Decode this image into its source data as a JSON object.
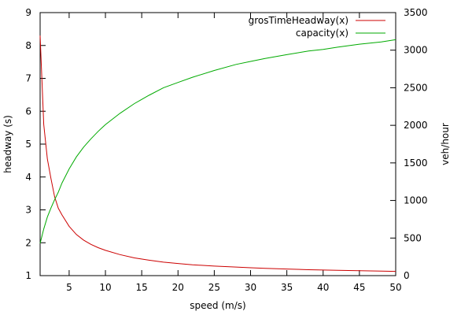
{
  "chart_data": {
    "type": "line",
    "xlabel": "speed (m/s)",
    "ylabel_left": "headway (s)",
    "ylabel_right": "veh/hour",
    "xlim": [
      1,
      50
    ],
    "ylim_left": [
      1,
      9
    ],
    "ylim_right": [
      0,
      3500
    ],
    "x_ticks": [
      5,
      10,
      15,
      20,
      25,
      30,
      35,
      40,
      45,
      50
    ],
    "y_left_ticks": [
      1,
      2,
      3,
      4,
      5,
      6,
      7,
      8,
      9
    ],
    "y_right_ticks": [
      0,
      500,
      1000,
      1500,
      2000,
      2500,
      3000,
      3500
    ],
    "legend_position": "top-right",
    "grid": false,
    "series": [
      {
        "name": "grosTimeHeadway(x)",
        "axis": "left",
        "color": "#cc0000",
        "x": [
          1,
          1.5,
          2,
          2.5,
          3,
          3.5,
          4,
          5,
          6,
          7,
          8,
          9,
          10,
          12,
          14,
          16,
          18,
          20,
          22,
          25,
          28,
          30,
          32,
          35,
          38,
          40,
          42,
          45,
          48,
          50
        ],
        "values": [
          8.3,
          5.6,
          4.55,
          3.95,
          3.4,
          3.05,
          2.85,
          2.5,
          2.25,
          2.08,
          1.95,
          1.85,
          1.77,
          1.64,
          1.54,
          1.47,
          1.41,
          1.37,
          1.33,
          1.29,
          1.26,
          1.24,
          1.22,
          1.2,
          1.18,
          1.17,
          1.16,
          1.15,
          1.14,
          1.13
        ]
      },
      {
        "name": "capacity(x)",
        "axis": "right",
        "color": "#00aa00",
        "x": [
          1,
          1.5,
          2,
          2.5,
          3,
          3.5,
          4,
          5,
          6,
          7,
          8,
          9,
          10,
          12,
          14,
          16,
          18,
          20,
          22,
          25,
          28,
          30,
          32,
          35,
          38,
          40,
          42,
          45,
          48,
          50
        ],
        "values": [
          430,
          620,
          780,
          900,
          1010,
          1110,
          1230,
          1420,
          1580,
          1710,
          1820,
          1920,
          2010,
          2160,
          2290,
          2400,
          2500,
          2570,
          2640,
          2730,
          2810,
          2850,
          2890,
          2940,
          2990,
          3010,
          3040,
          3080,
          3110,
          3140
        ]
      }
    ]
  }
}
